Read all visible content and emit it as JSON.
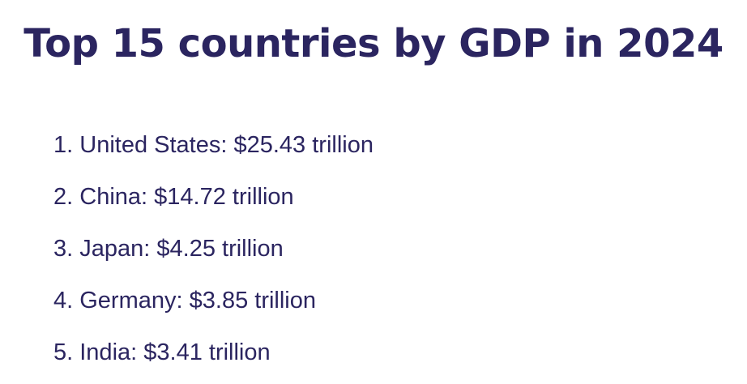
{
  "title": "Top 15 countries by GDP in 2024",
  "items": [
    {
      "rank": "1.",
      "country": "United States",
      "value": "$25.43 trillion"
    },
    {
      "rank": "2.",
      "country": "China",
      "value": "$14.72 trillion"
    },
    {
      "rank": "3.",
      "country": "Japan",
      "value": "$4.25 trillion"
    },
    {
      "rank": "4.",
      "country": "Germany",
      "value": "$3.85 trillion"
    },
    {
      "rank": "5.",
      "country": "India",
      "value": "$3.41 trillion"
    }
  ]
}
